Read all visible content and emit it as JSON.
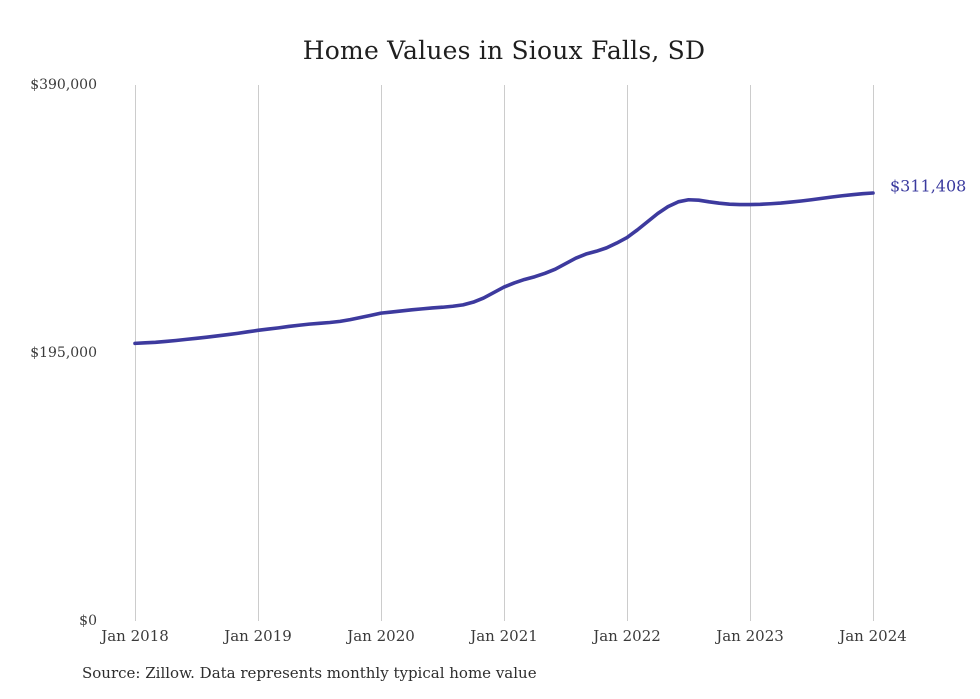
{
  "chart_data": {
    "type": "line",
    "title": "Home Values in Sioux Falls, SD",
    "xlabel": "",
    "ylabel": "",
    "ylim": [
      0,
      390000
    ],
    "grid": "vertical-only",
    "gridline_color": "#cccccc",
    "line_color": "#3d3a9e",
    "end_label": "$311,408",
    "end_value": 311408,
    "y_ticks": [
      {
        "label": "$0",
        "value": 0
      },
      {
        "label": "$195,000",
        "value": 195000
      },
      {
        "label": "$390,000",
        "value": 390000
      }
    ],
    "x_tick_labels": [
      "Jan 2018",
      "Jan 2019",
      "Jan 2020",
      "Jan 2021",
      "Jan 2022",
      "Jan 2023",
      "Jan 2024"
    ],
    "series": [
      {
        "name": "Monthly typical home value",
        "x_start": "Jan 2018",
        "x_end": "Jan 2024",
        "interval": "monthly",
        "values": [
          202000,
          202400,
          202800,
          203400,
          204100,
          204900,
          205700,
          206500,
          207400,
          208300,
          209300,
          210400,
          211500,
          212400,
          213300,
          214300,
          215200,
          216000,
          216600,
          217200,
          218000,
          219300,
          220800,
          222400,
          224000,
          224800,
          225600,
          226400,
          227100,
          227800,
          228300,
          229000,
          230000,
          232000,
          235000,
          239000,
          243000,
          246000,
          248500,
          250500,
          253000,
          256000,
          260000,
          264000,
          267000,
          269000,
          271500,
          275000,
          279000,
          284500,
          290500,
          296500,
          301500,
          305000,
          306500,
          306200,
          305000,
          304000,
          303300,
          303000,
          303000,
          303200,
          303600,
          304100,
          304800,
          305600,
          306500,
          307500,
          308500,
          309400,
          310200,
          310900,
          311408
        ]
      }
    ],
    "source_note": "Source: Zillow. Data represents monthly typical home value"
  }
}
